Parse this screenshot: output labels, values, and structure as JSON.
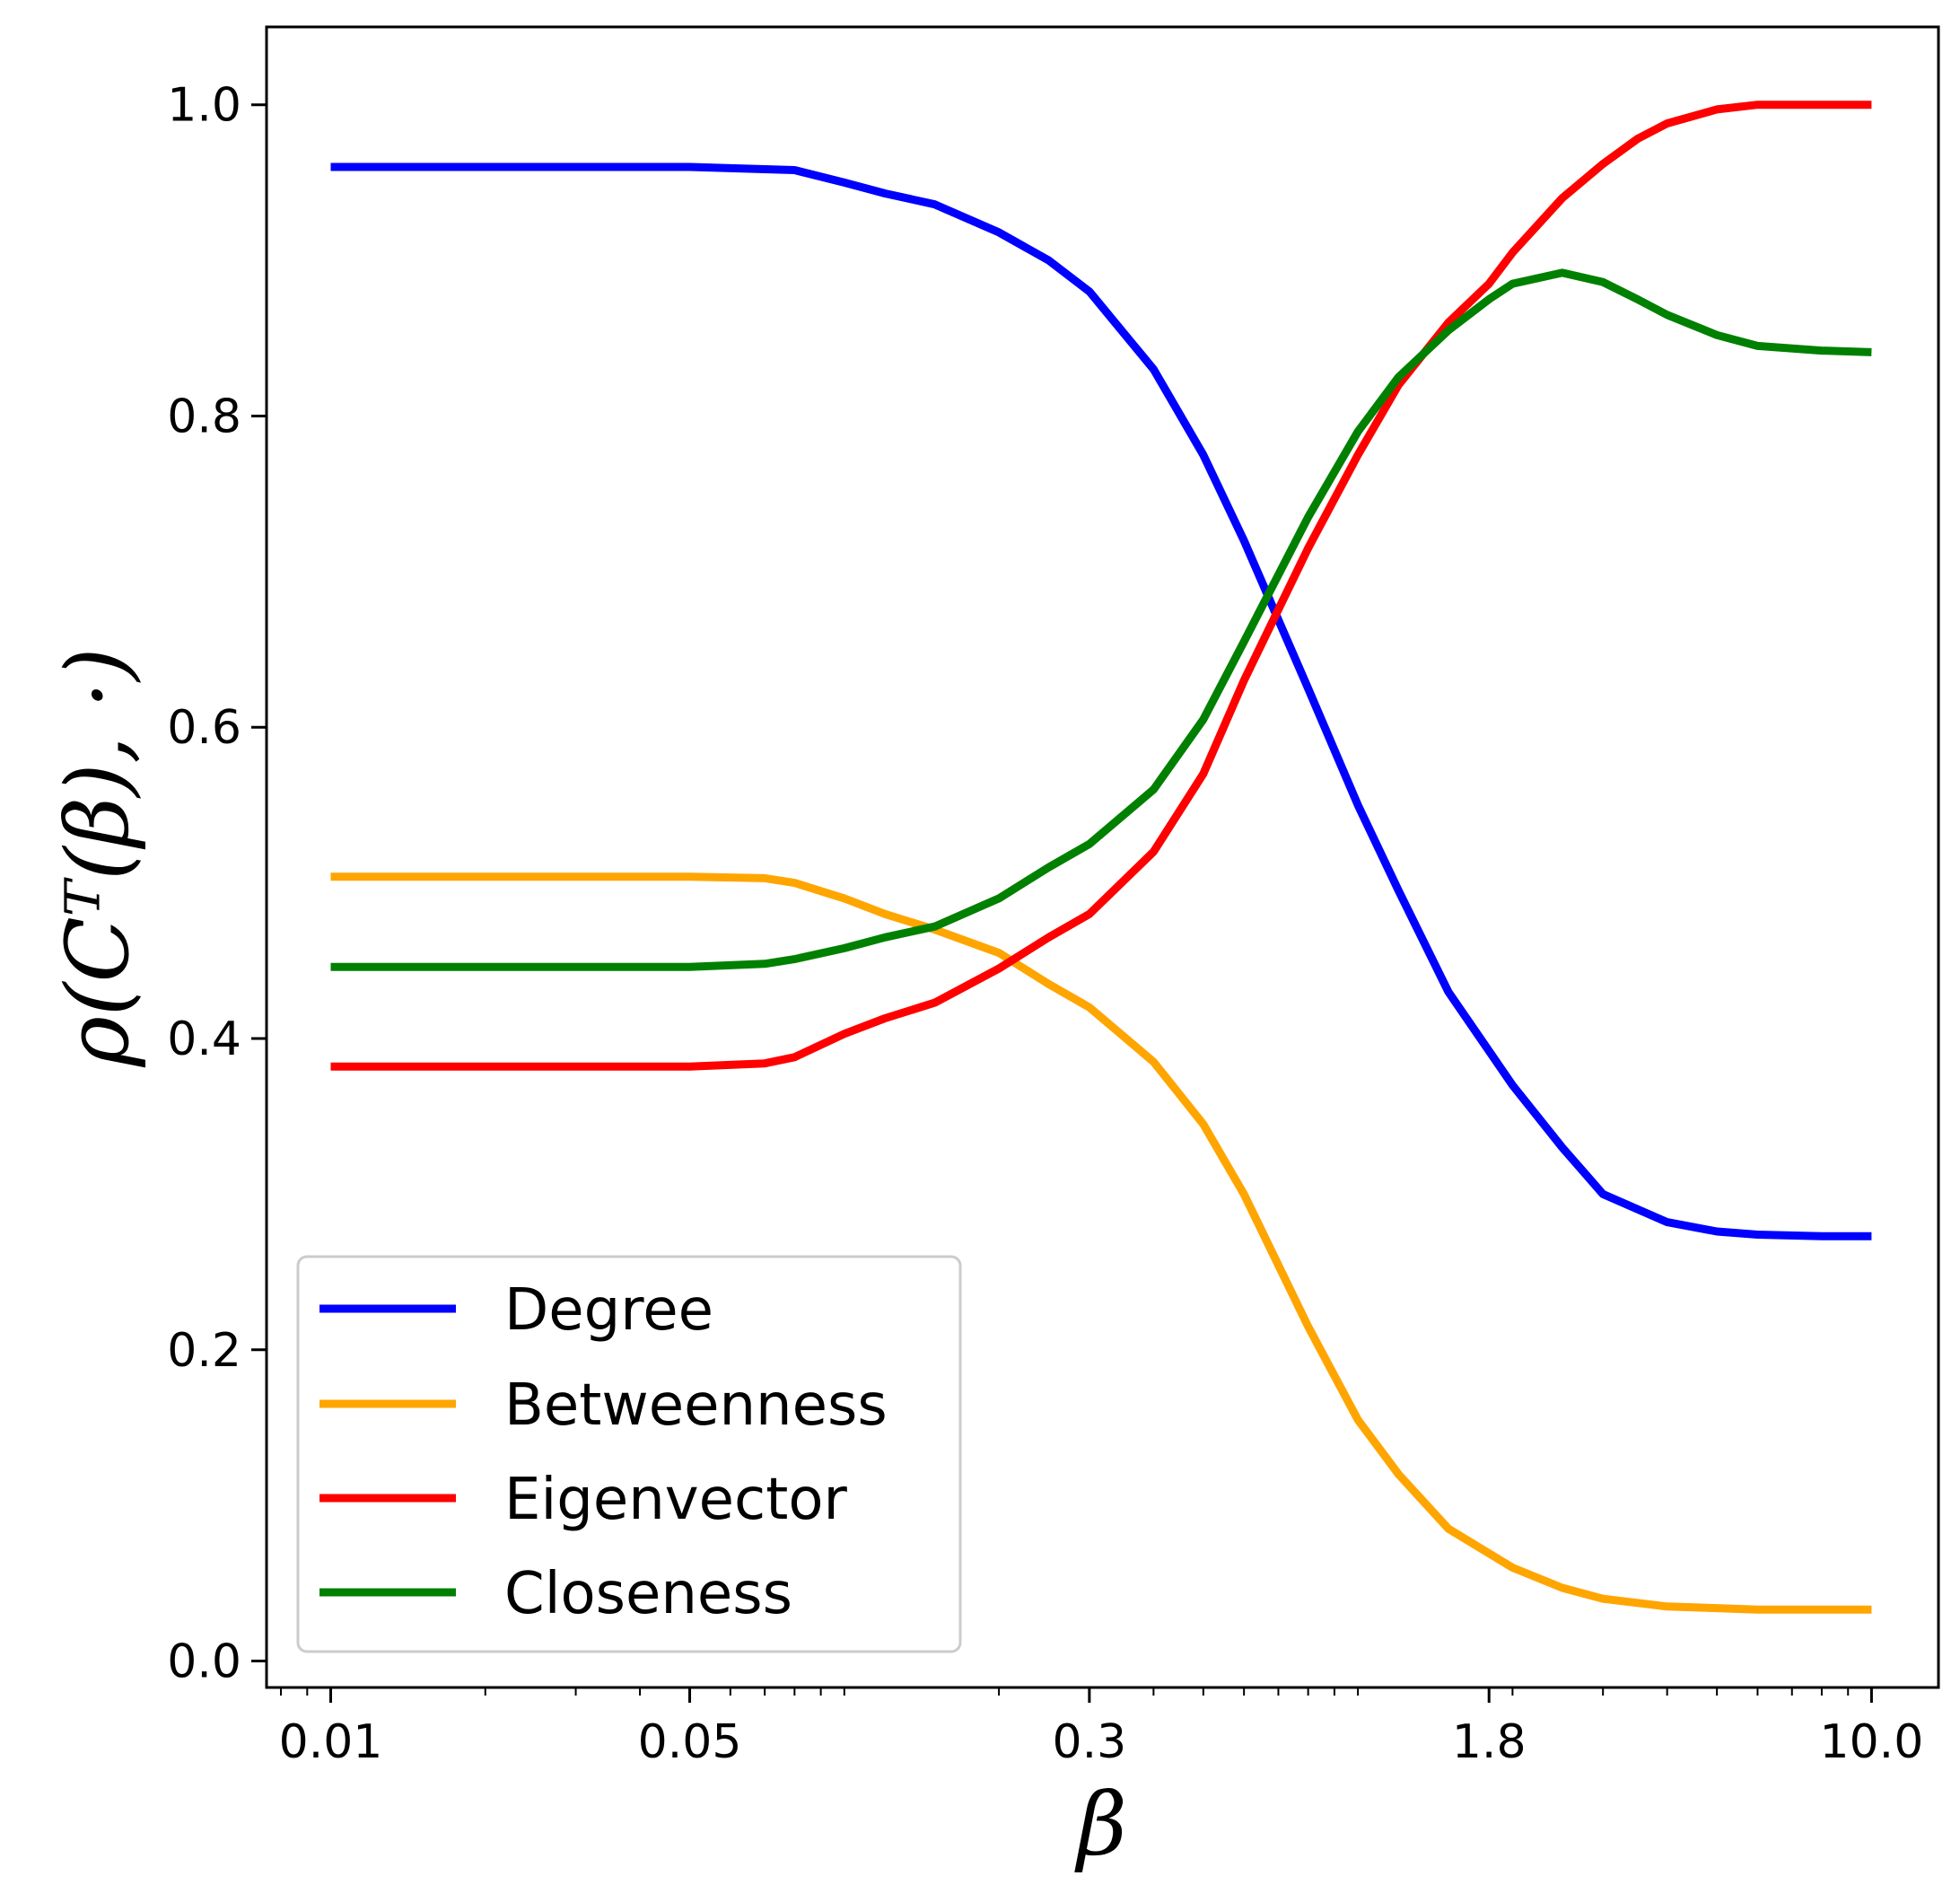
{
  "chart_data": {
    "type": "line",
    "title": "",
    "xlabel": "β",
    "ylabel": "ρ(Cᵀ(β), ·)",
    "x_scale": "log",
    "xlim": [
      0.0075,
      13.5
    ],
    "ylim": [
      -0.017,
      1.05
    ],
    "xticks": [
      {
        "value": 0.01,
        "label": "0.01"
      },
      {
        "value": 0.05,
        "label": "0.05"
      },
      {
        "value": 0.3,
        "label": "0.3"
      },
      {
        "value": 1.8,
        "label": "1.8"
      },
      {
        "value": 10.0,
        "label": "10.0"
      }
    ],
    "yticks": [
      {
        "value": 0.0,
        "label": "0.0"
      },
      {
        "value": 0.2,
        "label": "0.2"
      },
      {
        "value": 0.4,
        "label": "0.4"
      },
      {
        "value": 0.6,
        "label": "0.6"
      },
      {
        "value": 0.8,
        "label": "0.8"
      },
      {
        "value": 1.0,
        "label": "1.0"
      }
    ],
    "legend_position": "bottom-left",
    "grid": false,
    "series": [
      {
        "name": "Degree",
        "color": "#0000ff",
        "x": [
          0.01,
          0.02,
          0.05,
          0.08,
          0.1,
          0.12,
          0.15,
          0.2,
          0.25,
          0.3,
          0.4,
          0.5,
          0.6,
          0.8,
          1.0,
          1.2,
          1.5,
          2.0,
          2.5,
          3.0,
          4.0,
          5.0,
          6.0,
          8.0,
          10.0
        ],
        "values": [
          0.96,
          0.96,
          0.96,
          0.958,
          0.95,
          0.943,
          0.936,
          0.918,
          0.9,
          0.88,
          0.83,
          0.775,
          0.72,
          0.625,
          0.55,
          0.495,
          0.43,
          0.37,
          0.33,
          0.3,
          0.282,
          0.276,
          0.274,
          0.273,
          0.273
        ]
      },
      {
        "name": "Betweenness",
        "color": "#ffa500",
        "x": [
          0.01,
          0.02,
          0.05,
          0.07,
          0.08,
          0.1,
          0.12,
          0.15,
          0.2,
          0.25,
          0.3,
          0.4,
          0.5,
          0.6,
          0.8,
          1.0,
          1.2,
          1.5,
          2.0,
          2.5,
          3.0,
          4.0,
          5.0,
          6.0,
          8.0,
          10.0
        ],
        "values": [
          0.504,
          0.504,
          0.504,
          0.503,
          0.5,
          0.49,
          0.48,
          0.47,
          0.455,
          0.435,
          0.42,
          0.385,
          0.345,
          0.3,
          0.215,
          0.155,
          0.12,
          0.085,
          0.06,
          0.047,
          0.04,
          0.035,
          0.034,
          0.033,
          0.033,
          0.033
        ]
      },
      {
        "name": "Eigenvector",
        "color": "#ff0000",
        "x": [
          0.01,
          0.02,
          0.05,
          0.07,
          0.08,
          0.1,
          0.12,
          0.15,
          0.2,
          0.25,
          0.3,
          0.4,
          0.5,
          0.6,
          0.8,
          1.0,
          1.2,
          1.5,
          1.8,
          2.0,
          2.5,
          3.0,
          3.5,
          4.0,
          5.0,
          6.0,
          8.0,
          10.0
        ],
        "values": [
          0.382,
          0.382,
          0.382,
          0.384,
          0.388,
          0.403,
          0.413,
          0.423,
          0.445,
          0.465,
          0.48,
          0.52,
          0.57,
          0.63,
          0.715,
          0.775,
          0.82,
          0.86,
          0.885,
          0.905,
          0.94,
          0.962,
          0.978,
          0.988,
          0.997,
          1.0,
          1.0,
          1.0
        ]
      },
      {
        "name": "Closeness",
        "color": "#008000",
        "x": [
          0.01,
          0.02,
          0.05,
          0.07,
          0.08,
          0.1,
          0.12,
          0.15,
          0.2,
          0.25,
          0.3,
          0.4,
          0.5,
          0.6,
          0.8,
          1.0,
          1.2,
          1.5,
          1.8,
          2.0,
          2.5,
          3.0,
          3.5,
          4.0,
          5.0,
          6.0,
          8.0,
          10.0
        ],
        "values": [
          0.446,
          0.446,
          0.446,
          0.448,
          0.451,
          0.458,
          0.465,
          0.472,
          0.49,
          0.51,
          0.525,
          0.56,
          0.605,
          0.655,
          0.735,
          0.79,
          0.825,
          0.855,
          0.875,
          0.885,
          0.892,
          0.886,
          0.875,
          0.865,
          0.852,
          0.845,
          0.842,
          0.841
        ]
      }
    ]
  }
}
